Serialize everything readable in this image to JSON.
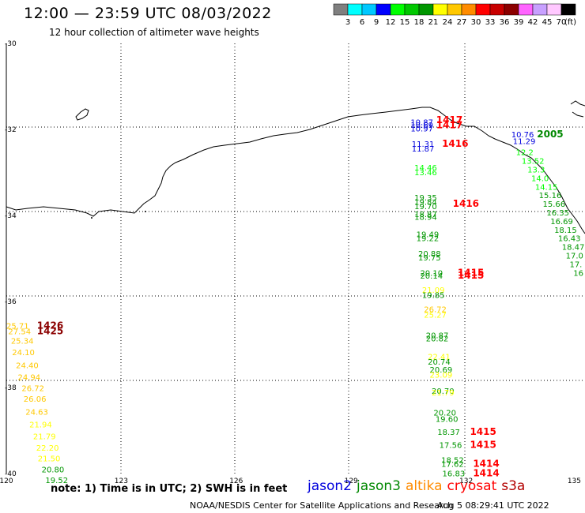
{
  "header": {
    "title": "12:00 — 23:59 UTC 08/03/2022",
    "subtitle": "12 hour collection of altimeter wave heights"
  },
  "scale": {
    "labels": [
      "3",
      "6",
      "9",
      "12",
      "15",
      "18",
      "21",
      "24",
      "27",
      "30",
      "33",
      "36",
      "39",
      "42",
      "45",
      "70"
    ],
    "unit": "(ft)",
    "colors": [
      "#7f7f7f",
      "#00ffff",
      "#00c8ff",
      "#0000ff",
      "#00ff00",
      "#00c800",
      "#009600",
      "#ffff00",
      "#ffc800",
      "#ff8c00",
      "#ff0000",
      "#c80000",
      "#8b0000",
      "#ff64ff",
      "#c8a0ff",
      "#ffc8ff",
      "#000000"
    ]
  },
  "axes": {
    "lat_labels": [
      "-30",
      "-32",
      "-34",
      "-36",
      "-38",
      "-40"
    ],
    "lon_labels": [
      "120",
      "123",
      "126",
      "129",
      "132",
      "135"
    ]
  },
  "satellites": [
    {
      "name": "jason2",
      "color": "#0000dd"
    },
    {
      "name": "jason3",
      "color": "#008800"
    },
    {
      "name": "altika",
      "color": "#ff8c00"
    },
    {
      "name": "cryosat",
      "color": "#ff0000"
    },
    {
      "name": "s3a",
      "color": "#b30000"
    }
  ],
  "footer": {
    "note": "note: 1) Time is in UTC; 2) SWH is in feet",
    "credit": "NOAA/NESDIS Center for Satellite Applications and Research",
    "timestamp": "Aug  5 08:29:41 UTC 2022"
  },
  "observations": [
    {
      "t": "10.87",
      "lon": 130.55,
      "lat": -31.9,
      "c": "#0000dd"
    },
    {
      "t": "10.69",
      "lon": 130.55,
      "lat": -31.96,
      "c": "#0000dd"
    },
    {
      "t": "10.97",
      "lon": 130.55,
      "lat": -32.05,
      "c": "#0000dd"
    },
    {
      "t": "1417",
      "lon": 131.22,
      "lat": -31.85,
      "c": "#ff0000",
      "b": true
    },
    {
      "t": "1417",
      "lon": 131.22,
      "lat": -31.97,
      "c": "#ff0000",
      "b": true
    },
    {
      "t": "11.31",
      "lon": 130.58,
      "lat": -32.4,
      "c": "#0000dd"
    },
    {
      "t": "11.87",
      "lon": 130.58,
      "lat": -32.51,
      "c": "#0000dd"
    },
    {
      "t": "1416",
      "lon": 131.37,
      "lat": -32.4,
      "c": "#ff0000",
      "b": true
    },
    {
      "t": "10.76",
      "lon": 133.18,
      "lat": -32.18,
      "c": "#0000dd"
    },
    {
      "t": "11.29",
      "lon": 133.22,
      "lat": -32.34,
      "c": "#0000dd"
    },
    {
      "t": "2005",
      "lon": 133.85,
      "lat": -32.18,
      "c": "#008800",
      "b": true
    },
    {
      "t": "12.2",
      "lon": 133.3,
      "lat": -32.6,
      "c": "#00ff00"
    },
    {
      "t": "13.52",
      "lon": 133.45,
      "lat": -32.8,
      "c": "#00ff00"
    },
    {
      "t": "13.3",
      "lon": 133.6,
      "lat": -33.0,
      "c": "#00ff00"
    },
    {
      "t": "14.0",
      "lon": 133.7,
      "lat": -33.2,
      "c": "#00ff00"
    },
    {
      "t": "14.15",
      "lon": 133.8,
      "lat": -33.4,
      "c": "#00ff00"
    },
    {
      "t": "15.16",
      "lon": 133.9,
      "lat": -33.6,
      "c": "#009600"
    },
    {
      "t": "15.66",
      "lon": 134.0,
      "lat": -33.8,
      "c": "#009600"
    },
    {
      "t": "16.35",
      "lon": 134.1,
      "lat": -34.0,
      "c": "#009600"
    },
    {
      "t": "16.69",
      "lon": 134.2,
      "lat": -34.2,
      "c": "#009600"
    },
    {
      "t": "18.15",
      "lon": 134.3,
      "lat": -34.4,
      "c": "#009600"
    },
    {
      "t": "16.43",
      "lon": 134.4,
      "lat": -34.6,
      "c": "#009600"
    },
    {
      "t": "18.47",
      "lon": 134.5,
      "lat": -34.8,
      "c": "#009600"
    },
    {
      "t": "17.0",
      "lon": 134.6,
      "lat": -35.0,
      "c": "#009600"
    },
    {
      "t": "17.",
      "lon": 134.7,
      "lat": -35.2,
      "c": "#009600"
    },
    {
      "t": "16",
      "lon": 134.8,
      "lat": -35.4,
      "c": "#009600"
    },
    {
      "t": "14.46",
      "lon": 130.65,
      "lat": -32.95,
      "c": "#00ff00"
    },
    {
      "t": "13.46",
      "lon": 130.65,
      "lat": -33.06,
      "c": "#00ff00"
    },
    {
      "t": "19.35",
      "lon": 130.65,
      "lat": -33.65,
      "c": "#009600"
    },
    {
      "t": "19.84",
      "lon": 130.65,
      "lat": -33.75,
      "c": "#009600"
    },
    {
      "t": "19.70",
      "lon": 130.65,
      "lat": -33.85,
      "c": "#009600"
    },
    {
      "t": "1416",
      "lon": 131.65,
      "lat": -33.8,
      "c": "#ff0000",
      "b": true
    },
    {
      "t": "18.87",
      "lon": 130.65,
      "lat": -34.04,
      "c": "#009600"
    },
    {
      "t": "18.94",
      "lon": 130.65,
      "lat": -34.1,
      "c": "#009600"
    },
    {
      "t": "19.49",
      "lon": 130.7,
      "lat": -34.5,
      "c": "#009600"
    },
    {
      "t": "19.22",
      "lon": 130.7,
      "lat": -34.6,
      "c": "#009600"
    },
    {
      "t": "20.88",
      "lon": 130.75,
      "lat": -34.95,
      "c": "#009600"
    },
    {
      "t": "19.75",
      "lon": 130.75,
      "lat": -35.05,
      "c": "#009600"
    },
    {
      "t": "20.10",
      "lon": 130.8,
      "lat": -35.4,
      "c": "#009600"
    },
    {
      "t": "20.14",
      "lon": 130.8,
      "lat": -35.47,
      "c": "#009600"
    },
    {
      "t": "1415",
      "lon": 131.78,
      "lat": -35.4,
      "c": "#ff0000",
      "b": true
    },
    {
      "t": "1415",
      "lon": 131.78,
      "lat": -35.47,
      "c": "#ff0000",
      "b": true
    },
    {
      "t": "21.09",
      "lon": 130.85,
      "lat": -35.8,
      "c": "#ffff00"
    },
    {
      "t": "19.85",
      "lon": 130.85,
      "lat": -35.92,
      "c": "#009600"
    },
    {
      "t": "26.72",
      "lon": 130.9,
      "lat": -36.25,
      "c": "#ffc800"
    },
    {
      "t": "25.27",
      "lon": 130.9,
      "lat": -36.38,
      "c": "#ffff00"
    },
    {
      "t": "20.87",
      "lon": 130.95,
      "lat": -36.85,
      "c": "#009600"
    },
    {
      "t": "20.82",
      "lon": 130.95,
      "lat": -36.93,
      "c": "#009600"
    },
    {
      "t": "22.41",
      "lon": 131.0,
      "lat": -37.35,
      "c": "#ffff00"
    },
    {
      "t": "20.74",
      "lon": 131.0,
      "lat": -37.47,
      "c": "#009600"
    },
    {
      "t": "20.69",
      "lon": 131.05,
      "lat": -37.65,
      "c": "#009600"
    },
    {
      "t": "23.09",
      "lon": 131.05,
      "lat": -37.77,
      "c": "#ffff00"
    },
    {
      "t": "20.70",
      "lon": 131.1,
      "lat": -38.15,
      "c": "#009600"
    },
    {
      "t": "21.79",
      "lon": 131.1,
      "lat": -38.18,
      "c": "#ffff00"
    },
    {
      "t": "20.20",
      "lon": 131.15,
      "lat": -38.65,
      "c": "#009600"
    },
    {
      "t": "19.60",
      "lon": 131.2,
      "lat": -38.8,
      "c": "#009600"
    },
    {
      "t": "18.37",
      "lon": 131.25,
      "lat": -39.1,
      "c": "#009600"
    },
    {
      "t": "1415",
      "lon": 132.1,
      "lat": -39.1,
      "c": "#ff0000",
      "b": true
    },
    {
      "t": "17.56",
      "lon": 131.3,
      "lat": -39.4,
      "c": "#009600"
    },
    {
      "t": "1415",
      "lon": 132.1,
      "lat": -39.4,
      "c": "#ff0000",
      "b": true
    },
    {
      "t": "18.52",
      "lon": 131.35,
      "lat": -39.75,
      "c": "#009600"
    },
    {
      "t": "17.62",
      "lon": 131.35,
      "lat": -39.84,
      "c": "#009600"
    },
    {
      "t": "1414",
      "lon": 132.18,
      "lat": -39.84,
      "c": "#ff0000",
      "b": true
    },
    {
      "t": "16.83",
      "lon": 131.38,
      "lat": -40.06,
      "c": "#009600"
    },
    {
      "t": "1414",
      "lon": 132.18,
      "lat": -40.06,
      "c": "#ff0000",
      "b": true
    },
    {
      "t": "25.71",
      "lon": 120.0,
      "lat": -36.63,
      "c": "#ffc800"
    },
    {
      "t": "1426",
      "lon": 120.8,
      "lat": -36.63,
      "c": "#8b0000",
      "b": true
    },
    {
      "t": "27.54",
      "lon": 120.05,
      "lat": -36.76,
      "c": "#ffc800"
    },
    {
      "t": "1425",
      "lon": 120.8,
      "lat": -36.76,
      "c": "#8b0000",
      "b": true
    },
    {
      "t": "25.34",
      "lon": 120.12,
      "lat": -36.98,
      "c": "#ffc800"
    },
    {
      "t": "24.10",
      "lon": 120.15,
      "lat": -37.25,
      "c": "#ffc800"
    },
    {
      "t": "24.40",
      "lon": 120.25,
      "lat": -37.55,
      "c": "#ffc800"
    },
    {
      "t": "24.94",
      "lon": 120.3,
      "lat": -37.83,
      "c": "#ffc800"
    },
    {
      "t": "26.72",
      "lon": 120.4,
      "lat": -38.08,
      "c": "#ffc800"
    },
    {
      "t": "26.06",
      "lon": 120.45,
      "lat": -38.33,
      "c": "#ffc800"
    },
    {
      "t": "24.63",
      "lon": 120.5,
      "lat": -38.63,
      "c": "#ffc800"
    },
    {
      "t": "21.94",
      "lon": 120.6,
      "lat": -38.93,
      "c": "#ffff00"
    },
    {
      "t": "21.79",
      "lon": 120.7,
      "lat": -39.2,
      "c": "#ffff00"
    },
    {
      "t": "22.20",
      "lon": 120.78,
      "lat": -39.47,
      "c": "#ffff00"
    },
    {
      "t": "21.50",
      "lon": 120.82,
      "lat": -39.72,
      "c": "#ffff00"
    },
    {
      "t": "20.80",
      "lon": 120.92,
      "lat": -39.97,
      "c": "#009600"
    },
    {
      "t": "19.52",
      "lon": 121.02,
      "lat": -40.22,
      "c": "#009600"
    }
  ]
}
